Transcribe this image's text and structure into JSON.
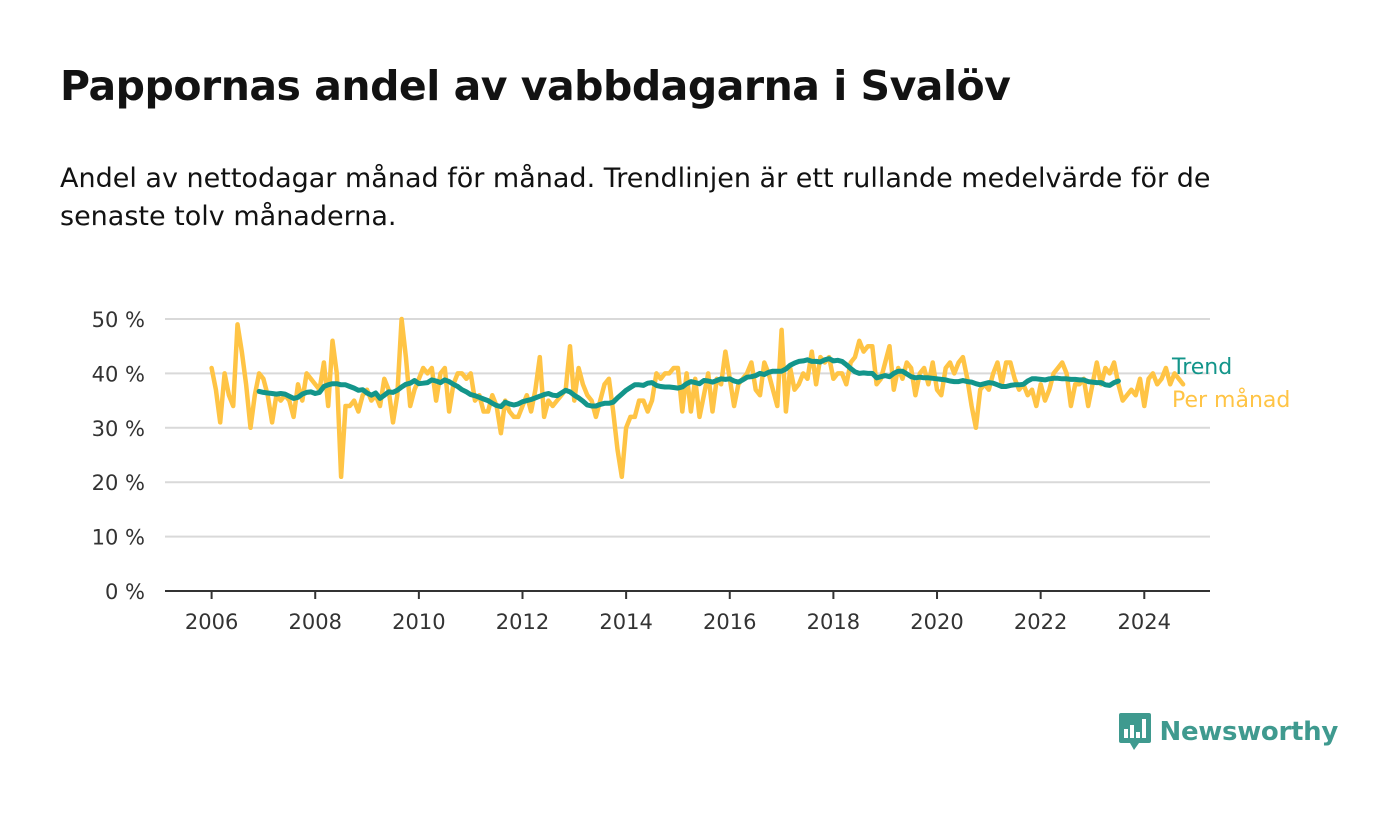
{
  "title": "Pappornas andel av vabbdagarna i Svalöv",
  "subtitle": "Andel av nettodagar månad för månad. Trendlinjen är ett rullande medelvärde för de senaste tolv månaderna.",
  "brand": {
    "name": "Newsworthy",
    "color": "#3f9a8f"
  },
  "colors": {
    "trend": "#13958a",
    "monthly": "#ffc445",
    "grid": "#d9d9d9",
    "axis": "#333333"
  },
  "chart_data": {
    "type": "line",
    "x_start": "2006-01",
    "x_ticks": [
      "2006",
      "2008",
      "2010",
      "2012",
      "2014",
      "2016",
      "2018",
      "2020",
      "2022",
      "2024"
    ],
    "y_ticks": [
      "0 %",
      "10 %",
      "20 %",
      "30 %",
      "40 %",
      "50 %"
    ],
    "ylim": [
      0,
      50
    ],
    "grid": true,
    "legend": "right-end",
    "series": [
      {
        "name": "Per månad",
        "color": "#ffc445",
        "values": [
          41,
          37,
          31,
          40,
          36,
          34,
          49,
          44,
          38,
          30,
          36,
          40,
          39,
          36,
          31,
          36,
          35,
          36,
          35,
          32,
          38,
          35,
          40,
          39,
          38,
          37,
          42,
          34,
          46,
          40,
          21,
          34,
          34,
          35,
          33,
          36,
          37,
          35,
          36,
          34,
          39,
          37,
          31,
          36,
          50,
          43,
          34,
          37,
          39,
          41,
          40,
          41,
          35,
          40,
          41,
          33,
          38,
          40,
          40,
          39,
          40,
          35,
          36,
          33,
          33,
          36,
          34,
          29,
          35,
          33,
          32,
          32,
          34,
          36,
          33,
          37,
          43,
          32,
          35,
          34,
          35,
          36,
          37,
          45,
          35,
          41,
          38,
          36,
          35,
          32,
          35,
          38,
          39,
          33,
          26,
          21,
          30,
          32,
          32,
          35,
          35,
          33,
          35,
          40,
          39,
          40,
          40,
          41,
          41,
          33,
          40,
          33,
          39,
          32,
          36,
          40,
          33,
          39,
          38,
          44,
          39,
          34,
          38,
          39,
          40,
          42,
          37,
          36,
          42,
          40,
          37,
          34,
          48,
          33,
          41,
          37,
          38,
          40,
          39,
          44,
          38,
          43,
          42,
          43,
          39,
          40,
          40,
          38,
          42,
          43,
          46,
          44,
          45,
          45,
          38,
          39,
          42,
          45,
          37,
          41,
          39,
          42,
          41,
          36,
          40,
          41,
          38,
          42,
          37,
          36,
          41,
          42,
          40,
          42,
          43,
          39,
          34,
          30,
          37,
          38,
          37,
          40,
          42,
          38,
          42,
          42,
          39,
          37,
          38,
          36,
          37,
          34,
          38,
          35,
          37,
          40,
          41,
          42,
          40,
          34,
          38,
          38,
          39,
          34,
          38,
          42,
          38,
          41,
          40,
          42,
          38,
          35,
          36,
          37,
          36,
          39,
          34,
          39,
          40,
          38,
          39,
          41,
          38,
          40,
          39,
          38
        ]
      },
      {
        "name": "Trend",
        "color": "#13958a",
        "start_index": 11,
        "values": [
          36.7,
          36.5,
          36.4,
          36.3,
          36.2,
          36.3,
          36.2,
          35.8,
          35.4,
          35.6,
          36.2,
          36.5,
          36.6,
          36.3,
          36.5,
          37.6,
          37.9,
          38.1,
          38.1,
          37.9,
          37.9,
          37.6,
          37.3,
          36.9,
          37.0,
          36.4,
          36.0,
          36.4,
          35.4,
          36.0,
          36.6,
          36.5,
          36.9,
          37.5,
          38.0,
          38.2,
          38.7,
          38.1,
          38.2,
          38.3,
          38.8,
          38.6,
          38.3,
          38.8,
          38.5,
          38.0,
          37.6,
          37.0,
          36.6,
          36.1,
          35.9,
          35.6,
          35.3,
          35.0,
          34.5,
          34.1,
          33.9,
          34.7,
          34.4,
          34.2,
          34.4,
          34.8,
          35.0,
          35.2,
          35.5,
          35.8,
          36.1,
          36.3,
          36.0,
          35.9,
          36.4,
          36.9,
          36.6,
          36.0,
          35.5,
          34.9,
          34.2,
          34.0,
          34.0,
          34.3,
          34.5,
          34.5,
          34.7,
          35.5,
          36.2,
          36.9,
          37.4,
          37.9,
          37.9,
          37.8,
          38.2,
          38.3,
          37.8,
          37.6,
          37.5,
          37.5,
          37.4,
          37.3,
          37.5,
          38.1,
          38.5,
          38.3,
          38.1,
          38.7,
          38.6,
          38.4,
          38.7,
          39.0,
          38.9,
          39.0,
          38.6,
          38.4,
          38.8,
          39.3,
          39.4,
          39.6,
          40.0,
          39.8,
          40.2,
          40.4,
          40.4,
          40.4,
          40.8,
          41.5,
          41.9,
          42.2,
          42.3,
          42.5,
          42.2,
          42.2,
          42.1,
          42.5,
          42.7,
          42.3,
          42.4,
          42.2,
          41.6,
          40.9,
          40.3,
          40.0,
          40.1,
          40.0,
          40.0,
          39.2,
          39.4,
          39.6,
          39.4,
          40.0,
          40.4,
          40.4,
          39.9,
          39.4,
          39.2,
          39.3,
          39.2,
          39.2,
          39.1,
          39.0,
          38.9,
          38.8,
          38.6,
          38.5,
          38.5,
          38.7,
          38.5,
          38.4,
          38.1,
          37.9,
          38.1,
          38.3,
          38.2,
          37.9,
          37.6,
          37.6,
          37.8,
          37.9,
          37.9,
          38.0,
          38.6,
          39.0,
          39.0,
          38.9,
          38.8,
          39.0,
          39.1,
          39.1,
          39.0,
          39.0,
          38.9,
          38.9,
          38.8,
          38.8,
          38.5,
          38.4,
          38.3,
          38.3,
          37.9,
          37.8,
          38.3,
          38.6
        ]
      }
    ]
  }
}
